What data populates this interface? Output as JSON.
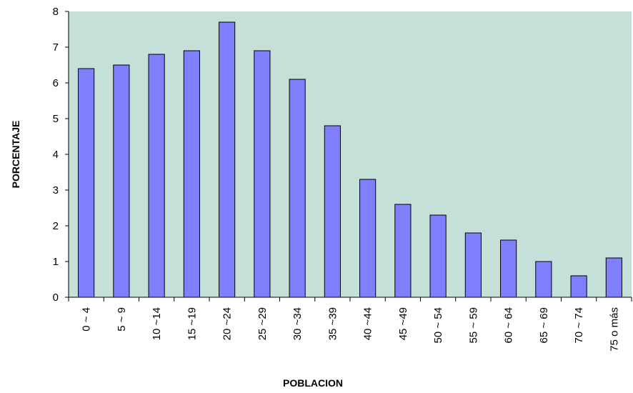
{
  "chart_data": {
    "type": "bar",
    "title": "",
    "xlabel": "POBLACION",
    "ylabel": "PORCENTAJE",
    "categories": [
      "0 ~ 4",
      "5 ~ 9",
      "10 ~14",
      "15 ~19",
      "20 ~24",
      "25 ~29",
      "30 ~34",
      "35 ~39",
      "40 ~44",
      "45 ~49",
      "50 ~ 54",
      "55 ~ 59",
      "60 ~ 64",
      "65 ~ 69",
      "70 ~ 74",
      "75 o más"
    ],
    "values": [
      6.4,
      6.5,
      6.8,
      6.9,
      7.7,
      6.9,
      6.1,
      4.8,
      3.3,
      2.6,
      2.3,
      1.8,
      1.6,
      1.0,
      0.6,
      1.1
    ],
    "yticks": [
      0,
      1,
      2,
      3,
      4,
      5,
      6,
      7,
      8
    ],
    "ylim": [
      0,
      8
    ],
    "grid": false,
    "legend": "none",
    "colors": {
      "bar_fill": "#8080ff",
      "bar_stroke": "#000000",
      "plot_background": "#c5e0d8",
      "axis": "#000000"
    }
  }
}
